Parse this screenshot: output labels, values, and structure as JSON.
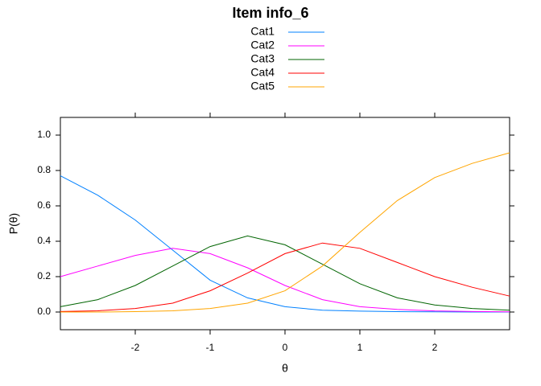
{
  "chart_data": {
    "type": "line",
    "title": "Item info_6",
    "x_label": "θ",
    "y_label": "P(θ)",
    "x": [
      -3,
      -2.5,
      -2,
      -1.5,
      -1,
      -0.5,
      0,
      0.5,
      1,
      1.5,
      2,
      2.5,
      3
    ],
    "series": [
      {
        "name": "Cat1",
        "color": "#0080ff",
        "values": [
          0.77,
          0.66,
          0.52,
          0.35,
          0.18,
          0.08,
          0.03,
          0.01,
          0.005,
          0.002,
          0.001,
          0,
          0
        ]
      },
      {
        "name": "Cat2",
        "color": "#ff00ff",
        "values": [
          0.2,
          0.26,
          0.32,
          0.36,
          0.33,
          0.25,
          0.15,
          0.07,
          0.03,
          0.015,
          0.006,
          0.003,
          0.001
        ]
      },
      {
        "name": "Cat3",
        "color": "#006400",
        "values": [
          0.03,
          0.07,
          0.15,
          0.26,
          0.37,
          0.43,
          0.38,
          0.27,
          0.16,
          0.08,
          0.04,
          0.02,
          0.01
        ]
      },
      {
        "name": "Cat4",
        "color": "#ff0000",
        "values": [
          0.003,
          0.007,
          0.02,
          0.05,
          0.12,
          0.22,
          0.33,
          0.39,
          0.36,
          0.28,
          0.2,
          0.14,
          0.09
        ]
      },
      {
        "name": "Cat5",
        "color": "#ffa500",
        "values": [
          0,
          0,
          0.002,
          0.007,
          0.02,
          0.05,
          0.12,
          0.26,
          0.45,
          0.63,
          0.76,
          0.84,
          0.9
        ]
      }
    ],
    "xlim": [
      -3,
      3
    ],
    "ylim": [
      -0.1,
      1.1
    ],
    "xticks": [
      -2,
      -1,
      0,
      1,
      2
    ],
    "yticks": [
      {
        "value": 0,
        "label": "0.0"
      },
      0.2,
      0.4,
      0.6,
      0.8,
      {
        "value": 1,
        "label": "1.0"
      }
    ],
    "legend": "top"
  }
}
